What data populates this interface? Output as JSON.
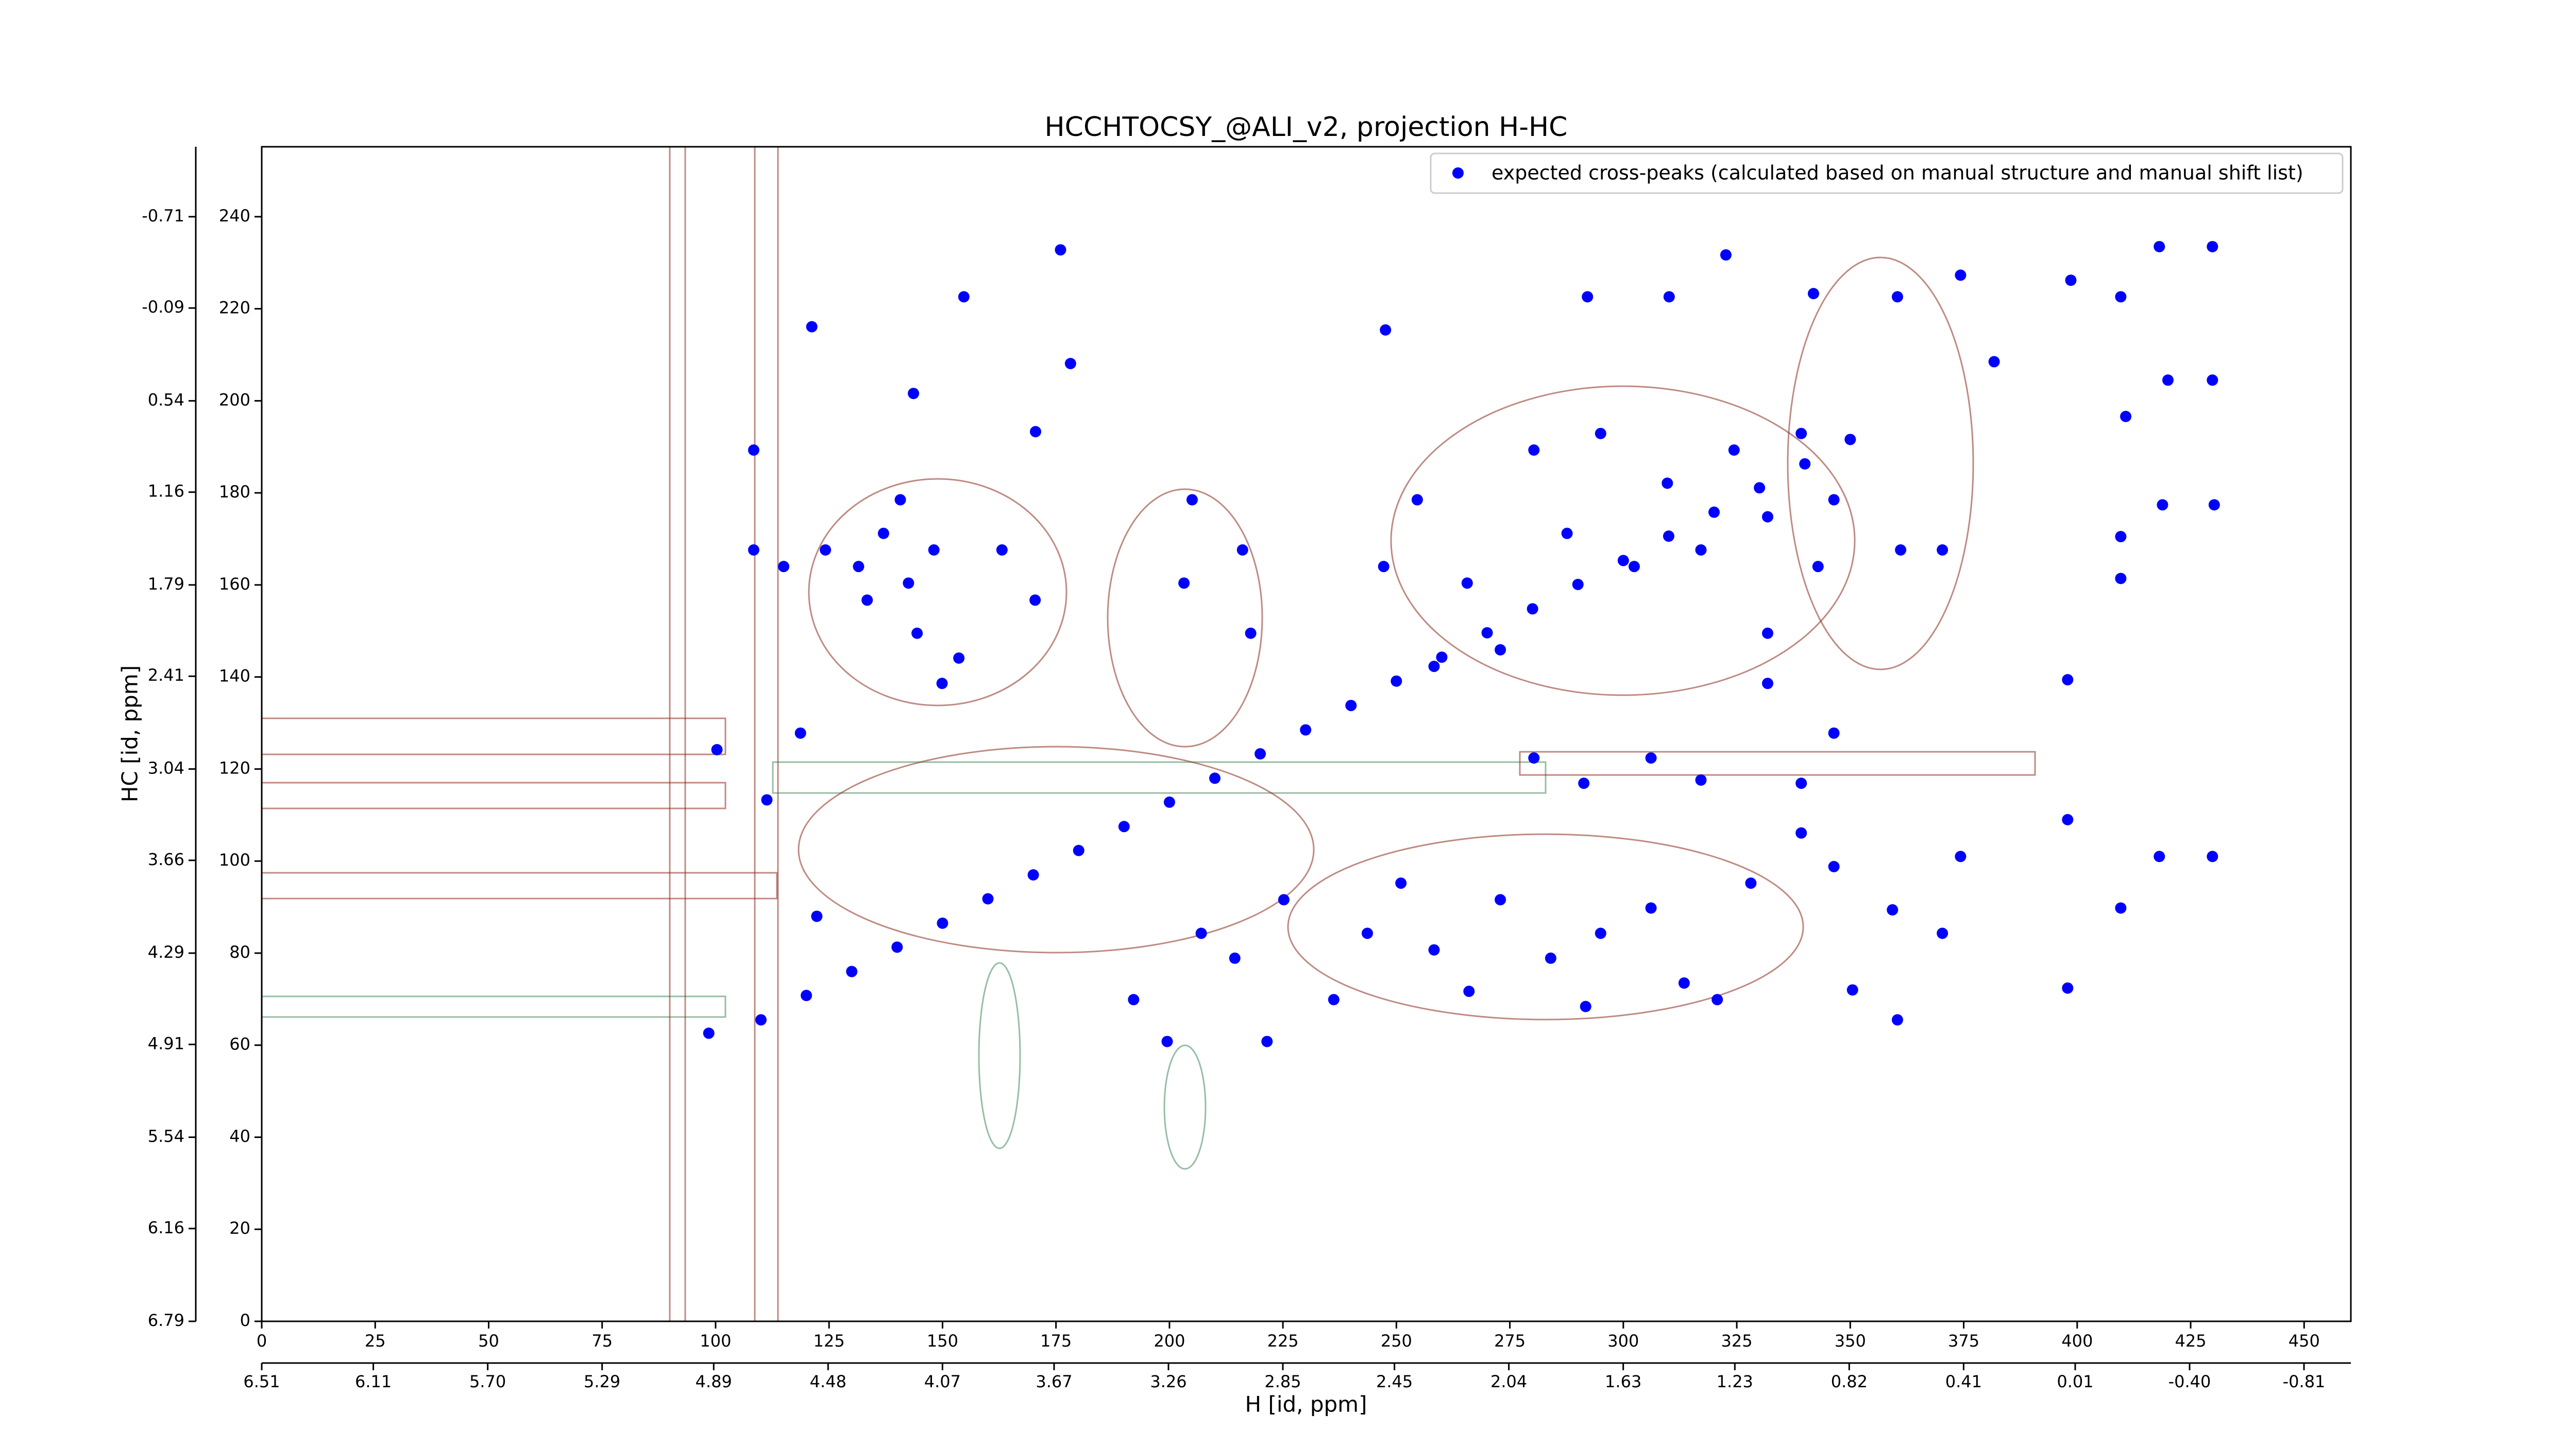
{
  "chart_data": {
    "type": "scatter",
    "title": "HCCHTOCSY_@ALI_v2, projection H-HC",
    "xlabel": "H [id, ppm]",
    "ylabel": "HC [id, ppm]",
    "xlim": [
      0,
      460.3
    ],
    "ylim": [
      0,
      255.2
    ],
    "xticks": [
      0,
      25,
      50,
      75,
      100,
      125,
      150,
      175,
      200,
      225,
      250,
      275,
      300,
      325,
      350,
      375,
      400,
      425,
      450
    ],
    "yticks": [
      0,
      20,
      40,
      60,
      80,
      100,
      120,
      140,
      160,
      180,
      200,
      220,
      240
    ],
    "x2lim": [
      6.51,
      -0.978
    ],
    "x2ticks": [
      6.51,
      6.11,
      {
        "value": 5.7,
        "label": "5.70"
      },
      5.29,
      4.89,
      4.48,
      4.07,
      3.67,
      3.26,
      2.85,
      2.45,
      2.04,
      1.63,
      1.23,
      0.82,
      0.41,
      0.01,
      {
        "value": -0.4,
        "label": "-0.40"
      },
      -0.81
    ],
    "y2lim": [
      6.79,
      -1.185
    ],
    "y2ticks": [
      6.79,
      6.16,
      5.54,
      4.91,
      4.29,
      3.66,
      3.04,
      2.41,
      1.79,
      1.16,
      0.54,
      -0.09,
      -0.71
    ],
    "legend": "upper right",
    "series": [
      {
        "name": "expected cross-peaks (calculated based on manual structure and manual shift list)",
        "color": "#0000ff",
        "x": [
          110,
          120,
          130,
          140,
          150,
          160,
          170,
          180,
          190,
          200,
          210,
          220,
          230,
          240,
          250,
          260,
          270,
          280,
          290,
          300,
          310,
          320,
          330,
          340,
          350,
          176,
          154.7,
          178.2,
          170.5,
          143.6,
          121.2,
          247.6,
          322.6,
          310.1,
          292.1,
          341.9,
          360.4,
          374.3,
          398.6,
          409.6,
          418.1,
          429.8,
          381.7,
          420,
          429.8,
          410.7,
          418.8,
          430.2,
          409.6,
          409.6,
          397.9,
          397.9,
          409.6,
          397.9,
          418.1,
          429.8,
          374.3,
          359.3,
          370.3,
          350.5,
          360.4,
          131.5,
          137,
          142.5,
          148.1,
          133.4,
          144.4,
          153.6,
          163.1,
          170.4,
          124.2,
          140.7,
          149.9,
          108.4,
          108.4,
          115,
          118.7,
          111.3,
          100.3,
          98.5,
          122.3,
          203.2,
          216.1,
          205,
          217.9,
          207,
          214.4,
          192.1,
          199.5,
          221.5,
          243.6,
          258.3,
          272.9,
          284,
          295,
          306.1,
          313.4,
          291.7,
          266,
          236.2,
          328.1,
          320.7,
          225.2,
          251,
          280.3,
          291.3,
          306.1,
          317.1,
          339.2,
          280.3,
          295,
          309.7,
          324.4,
          287.6,
          302.4,
          317.1,
          331.8,
          342.9,
          265.6,
          254.6,
          247.2,
          258.3,
          272.9,
          331.8,
          346.4,
          361.1,
          370.3,
          339.2,
          346.4,
          339.2,
          346.4,
          331.8
        ],
        "y": [
          65.5,
          70.8,
          76,
          81.3,
          86.5,
          91.8,
          97,
          102.3,
          107.5,
          112.8,
          118,
          123.3,
          128.5,
          133.8,
          139.1,
          144.3,
          149.6,
          154.8,
          160.1,
          165.3,
          170.6,
          175.8,
          181.1,
          186.3,
          191.6,
          232.8,
          222.6,
          208.1,
          193.3,
          201.6,
          216.1,
          215.4,
          231.7,
          222.6,
          222.6,
          223.3,
          222.6,
          227.3,
          226.2,
          222.6,
          233.5,
          233.5,
          208.5,
          204.5,
          204.5,
          196.6,
          177.4,
          177.4,
          170.5,
          161.4,
          139.4,
          109,
          89.8,
          72.4,
          101,
          101,
          101,
          89.4,
          84.3,
          72,
          65.5,
          164,
          171.2,
          160.4,
          167.6,
          156.7,
          149.5,
          144.1,
          167.6,
          156.7,
          167.6,
          178.5,
          138.6,
          189.3,
          167.6,
          164,
          127.8,
          113.3,
          124.2,
          62.6,
          88,
          160.4,
          167.6,
          178.5,
          149.5,
          84.3,
          78.9,
          69.9,
          60.8,
          60.8,
          84.3,
          80.7,
          91.6,
          78.9,
          84.3,
          89.8,
          73.5,
          68.4,
          71.7,
          69.9,
          95.2,
          69.9,
          91.6,
          95.2,
          122.4,
          116.9,
          122.4,
          117.6,
          116.9,
          189.3,
          192.9,
          182.1,
          189.3,
          171.2,
          164,
          167.6,
          174.8,
          164,
          160.4,
          178.5,
          164,
          142.3,
          145.9,
          149.5,
          178.5,
          167.6,
          167.6,
          192.9,
          127.8,
          106.1,
          98.8,
          138.6
        ]
      }
    ]
  }
}
